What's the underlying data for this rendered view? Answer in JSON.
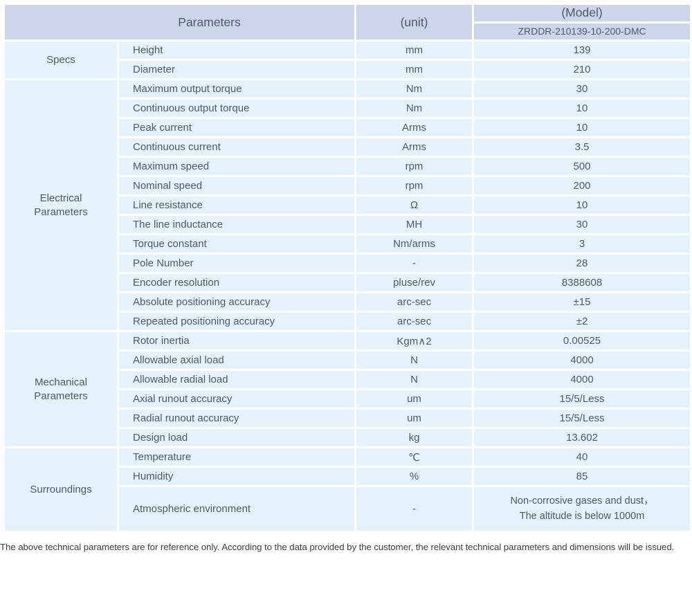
{
  "header": {
    "parameters_label": "Parameters",
    "unit_label": "(unit)",
    "model_label": "(Model)",
    "model_code": "ZRDDR-210139-10-200-DMC"
  },
  "sections": [
    {
      "name": "Specs",
      "rows": [
        {
          "parameter": "Height",
          "unit": "mm",
          "value": "139"
        },
        {
          "parameter": "Diameter",
          "unit": "mm",
          "value": "210"
        }
      ]
    },
    {
      "name": "Electrical Parameters",
      "rows": [
        {
          "parameter": "Maximum output torque",
          "unit": "Nm",
          "value": "30"
        },
        {
          "parameter": "Continuous output torque",
          "unit": "Nm",
          "value": "10"
        },
        {
          "parameter": "Peak current",
          "unit": "Arms",
          "value": "10"
        },
        {
          "parameter": "Continuous current",
          "unit": "Arms",
          "value": "3.5"
        },
        {
          "parameter": "Maximum speed",
          "unit": "rpm",
          "value": "500"
        },
        {
          "parameter": "Nominal speed",
          "unit": "rpm",
          "value": "200"
        },
        {
          "parameter": "Line resistance",
          "unit": "Ω",
          "value": "10"
        },
        {
          "parameter": "The line inductance",
          "unit": "MH",
          "value": "30"
        },
        {
          "parameter": "Torque constant",
          "unit": "Nm/arms",
          "value": "3"
        },
        {
          "parameter": "Pole Number",
          "unit": "-",
          "value": "28"
        },
        {
          "parameter": "Encoder resolution",
          "unit": "pluse/rev",
          "value": "8388608"
        },
        {
          "parameter": "Absolute positioning accuracy",
          "unit": "arc-sec",
          "value": "±15"
        },
        {
          "parameter": "Repeated positioning accuracy",
          "unit": "arc-sec",
          "value": "±2"
        }
      ]
    },
    {
      "name": "Mechanical Parameters",
      "rows": [
        {
          "parameter": "Rotor inertia",
          "unit": "Kgm∧2",
          "value": "0.00525"
        },
        {
          "parameter": "Allowable axial load",
          "unit": "N",
          "value": "4000"
        },
        {
          "parameter": "Allowable radial load",
          "unit": "N",
          "value": "4000"
        },
        {
          "parameter": "Axial runout accuracy",
          "unit": "um",
          "value": "15/5/Less"
        },
        {
          "parameter": "Radial runout accuracy",
          "unit": "um",
          "value": "15/5/Less"
        },
        {
          "parameter": "Design load",
          "unit": "kg",
          "value": "13.602"
        }
      ]
    },
    {
      "name": "Surroundings",
      "rows": [
        {
          "parameter": "Temperature",
          "unit": "℃",
          "value": "40"
        },
        {
          "parameter": "Humidity",
          "unit": "%",
          "value": "85"
        },
        {
          "parameter": "Atmospheric environment",
          "unit": "-",
          "value": "Non-corrosive gases and dust，\nThe altitude is below 1000m",
          "tall": true
        }
      ]
    }
  ],
  "footnote": "The above technical parameters are for reference only. According to the data provided by the customer, the relevant technical parameters and dimensions will be issued.",
  "colors": {
    "header_bg": "#ccd5ea",
    "row_bg": "#e5f2fc",
    "grid": "#ffffff",
    "table_text": "#4d5a68",
    "footnote_text": "#3f3f3f"
  }
}
